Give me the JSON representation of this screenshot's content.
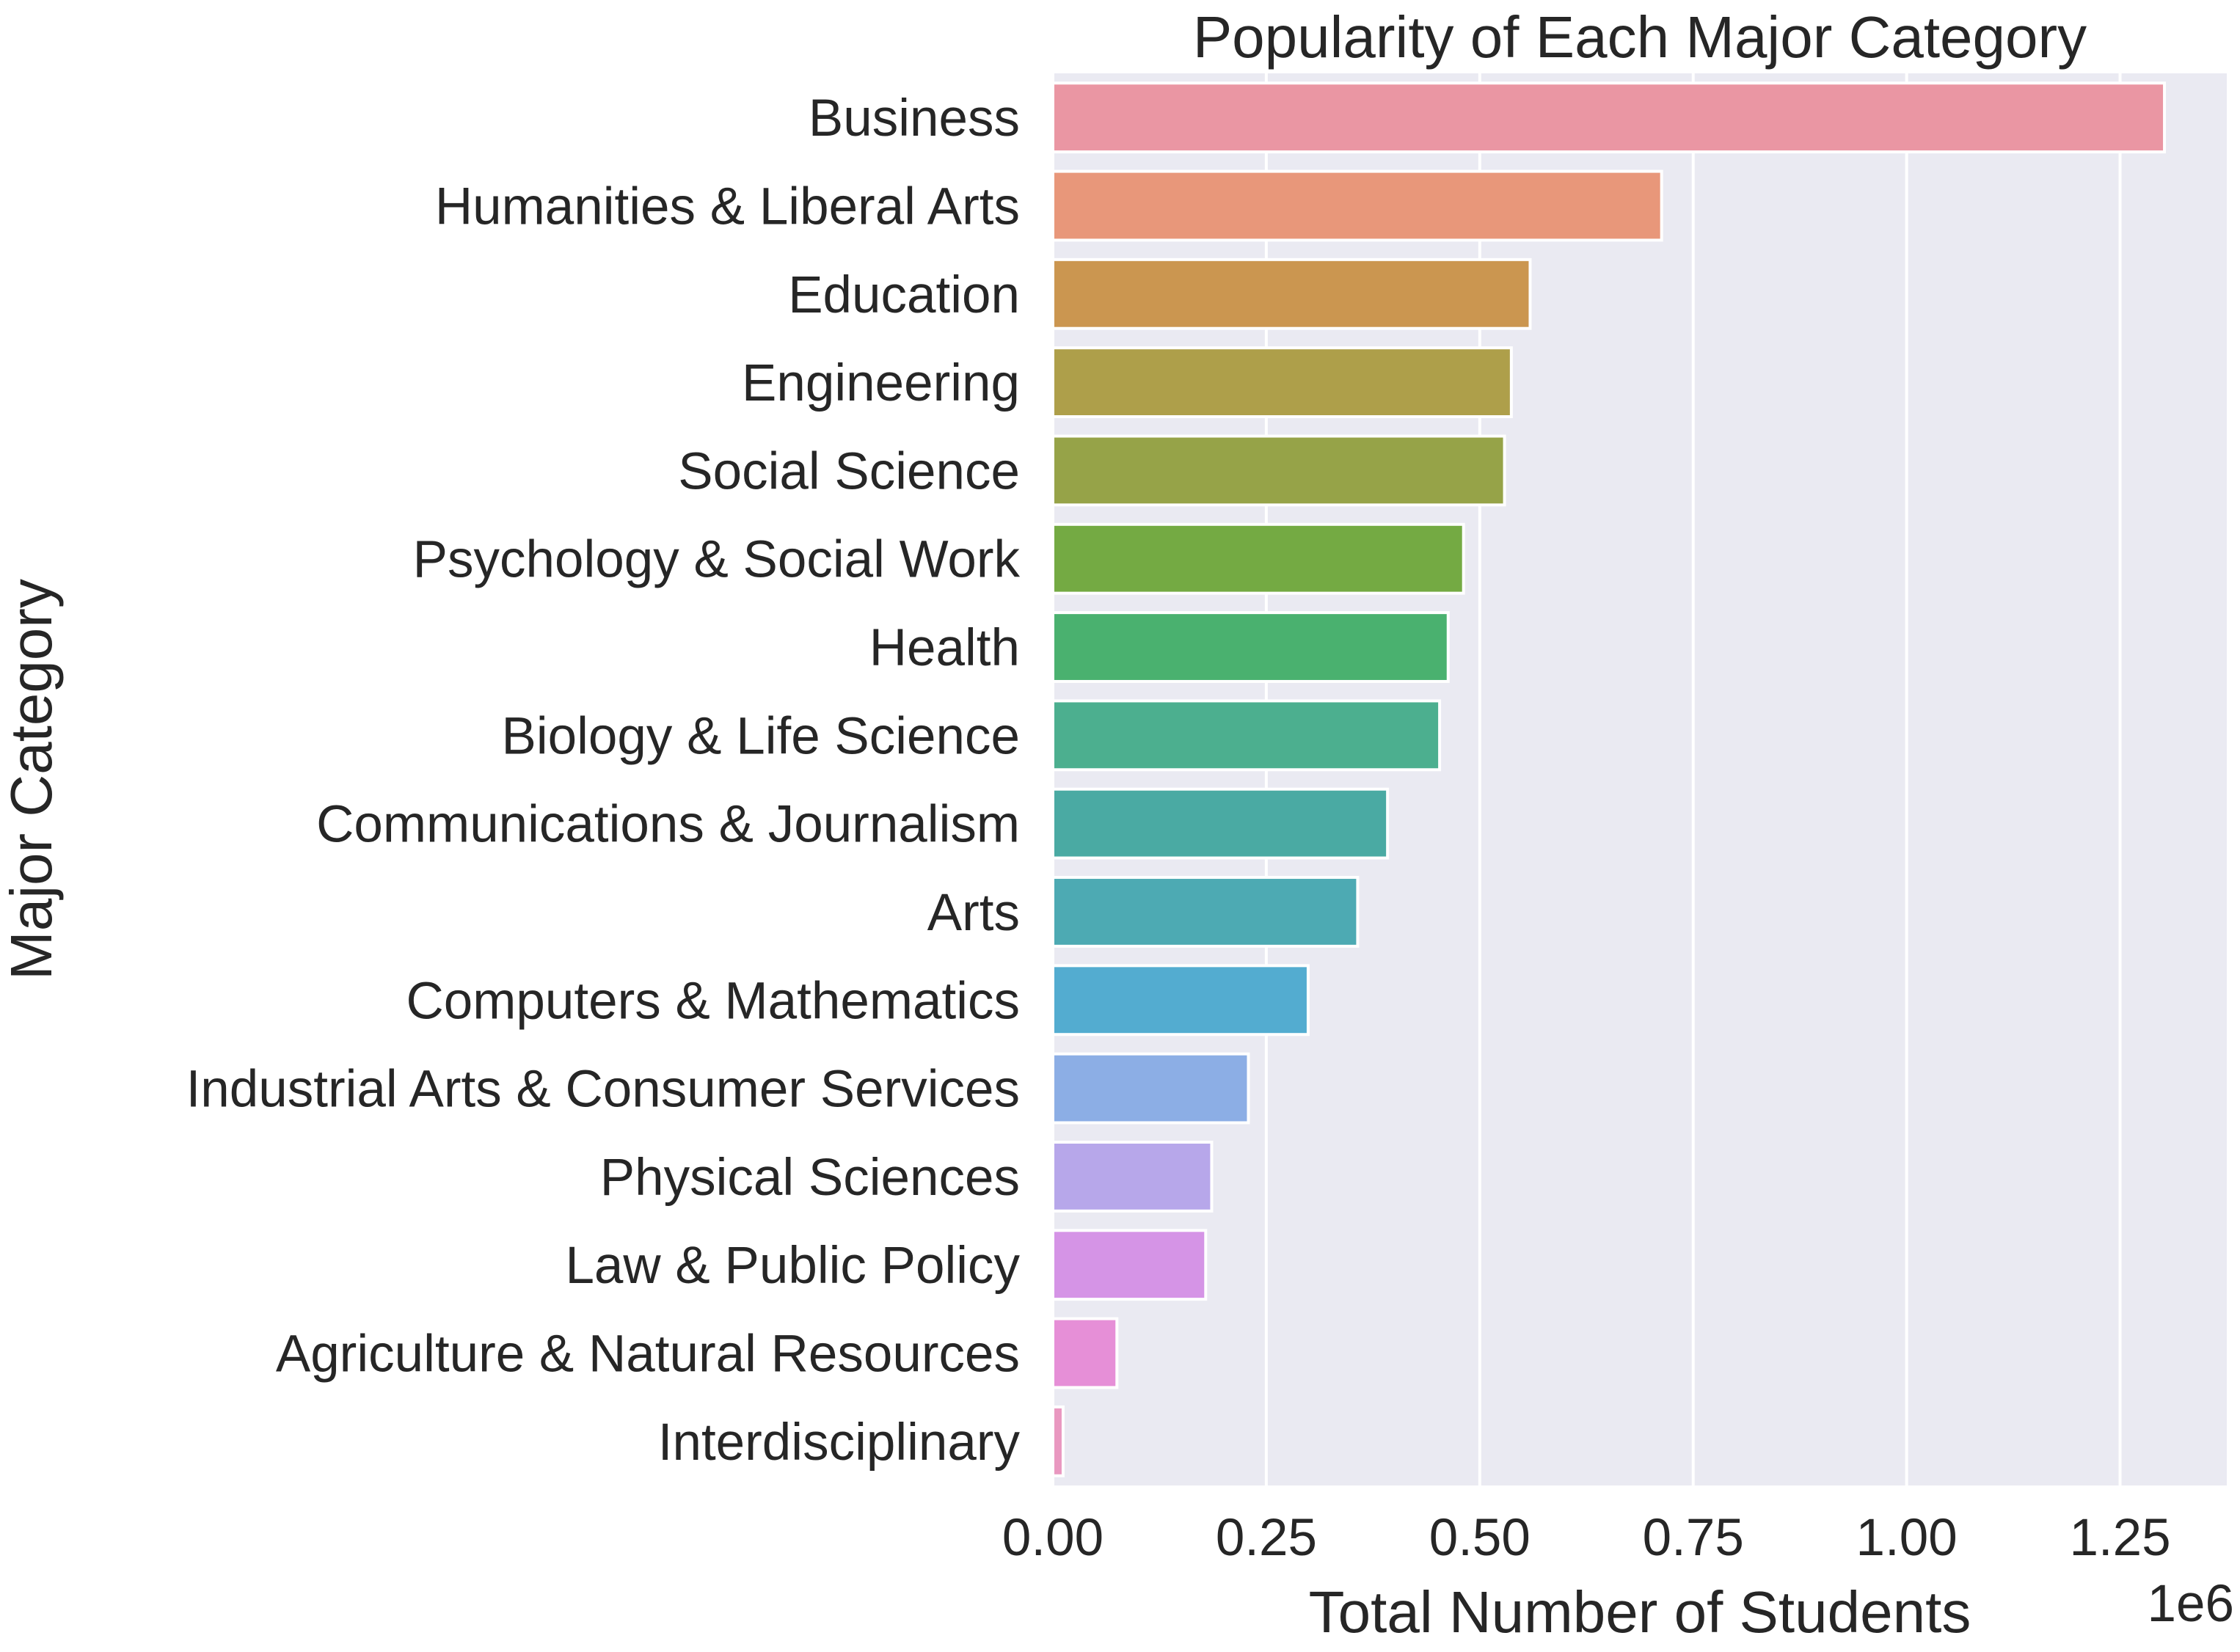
{
  "chart_data": {
    "type": "bar",
    "orientation": "horizontal",
    "title": "Popularity of Each Major Category",
    "xlabel": "Total Number of Students",
    "ylabel": "Major Category",
    "x_offset_label": "1e6",
    "xlim": [
      0,
      1.375
    ],
    "xticks": [
      0,
      0.25,
      0.5,
      0.75,
      1.0,
      1.25
    ],
    "xtick_labels": [
      "0.00",
      "0.25",
      "0.50",
      "0.75",
      "1.00",
      "1.25"
    ],
    "grid": true,
    "legend": "none",
    "categories": [
      "Business",
      "Humanities & Liberal Arts",
      "Education",
      "Engineering",
      "Social Science",
      "Psychology & Social Work",
      "Health",
      "Biology & Life Science",
      "Communications & Journalism",
      "Arts",
      "Computers & Mathematics",
      "Industrial Arts & Consumer Services",
      "Physical Sciences",
      "Law & Public Policy",
      "Agriculture & Natural Resources",
      "Interdisciplinary"
    ],
    "values": [
      1.302,
      0.713,
      0.559,
      0.537,
      0.529,
      0.481,
      0.463,
      0.453,
      0.392,
      0.357,
      0.299,
      0.229,
      0.186,
      0.179,
      0.075,
      0.012
    ],
    "colors": [
      "#ea96a3",
      "#e8977a",
      "#cb9650",
      "#ae9f4a",
      "#96a348",
      "#74aa43",
      "#4ab16f",
      "#4caf8f",
      "#4aaaa3",
      "#4daab3",
      "#53acd0",
      "#8caee5",
      "#b7a7ea",
      "#d594e6",
      "#e68fd7",
      "#e998c0"
    ],
    "background_color": "#eaeaf2",
    "grid_color": "#ffffff",
    "text_color": "#262626"
  }
}
